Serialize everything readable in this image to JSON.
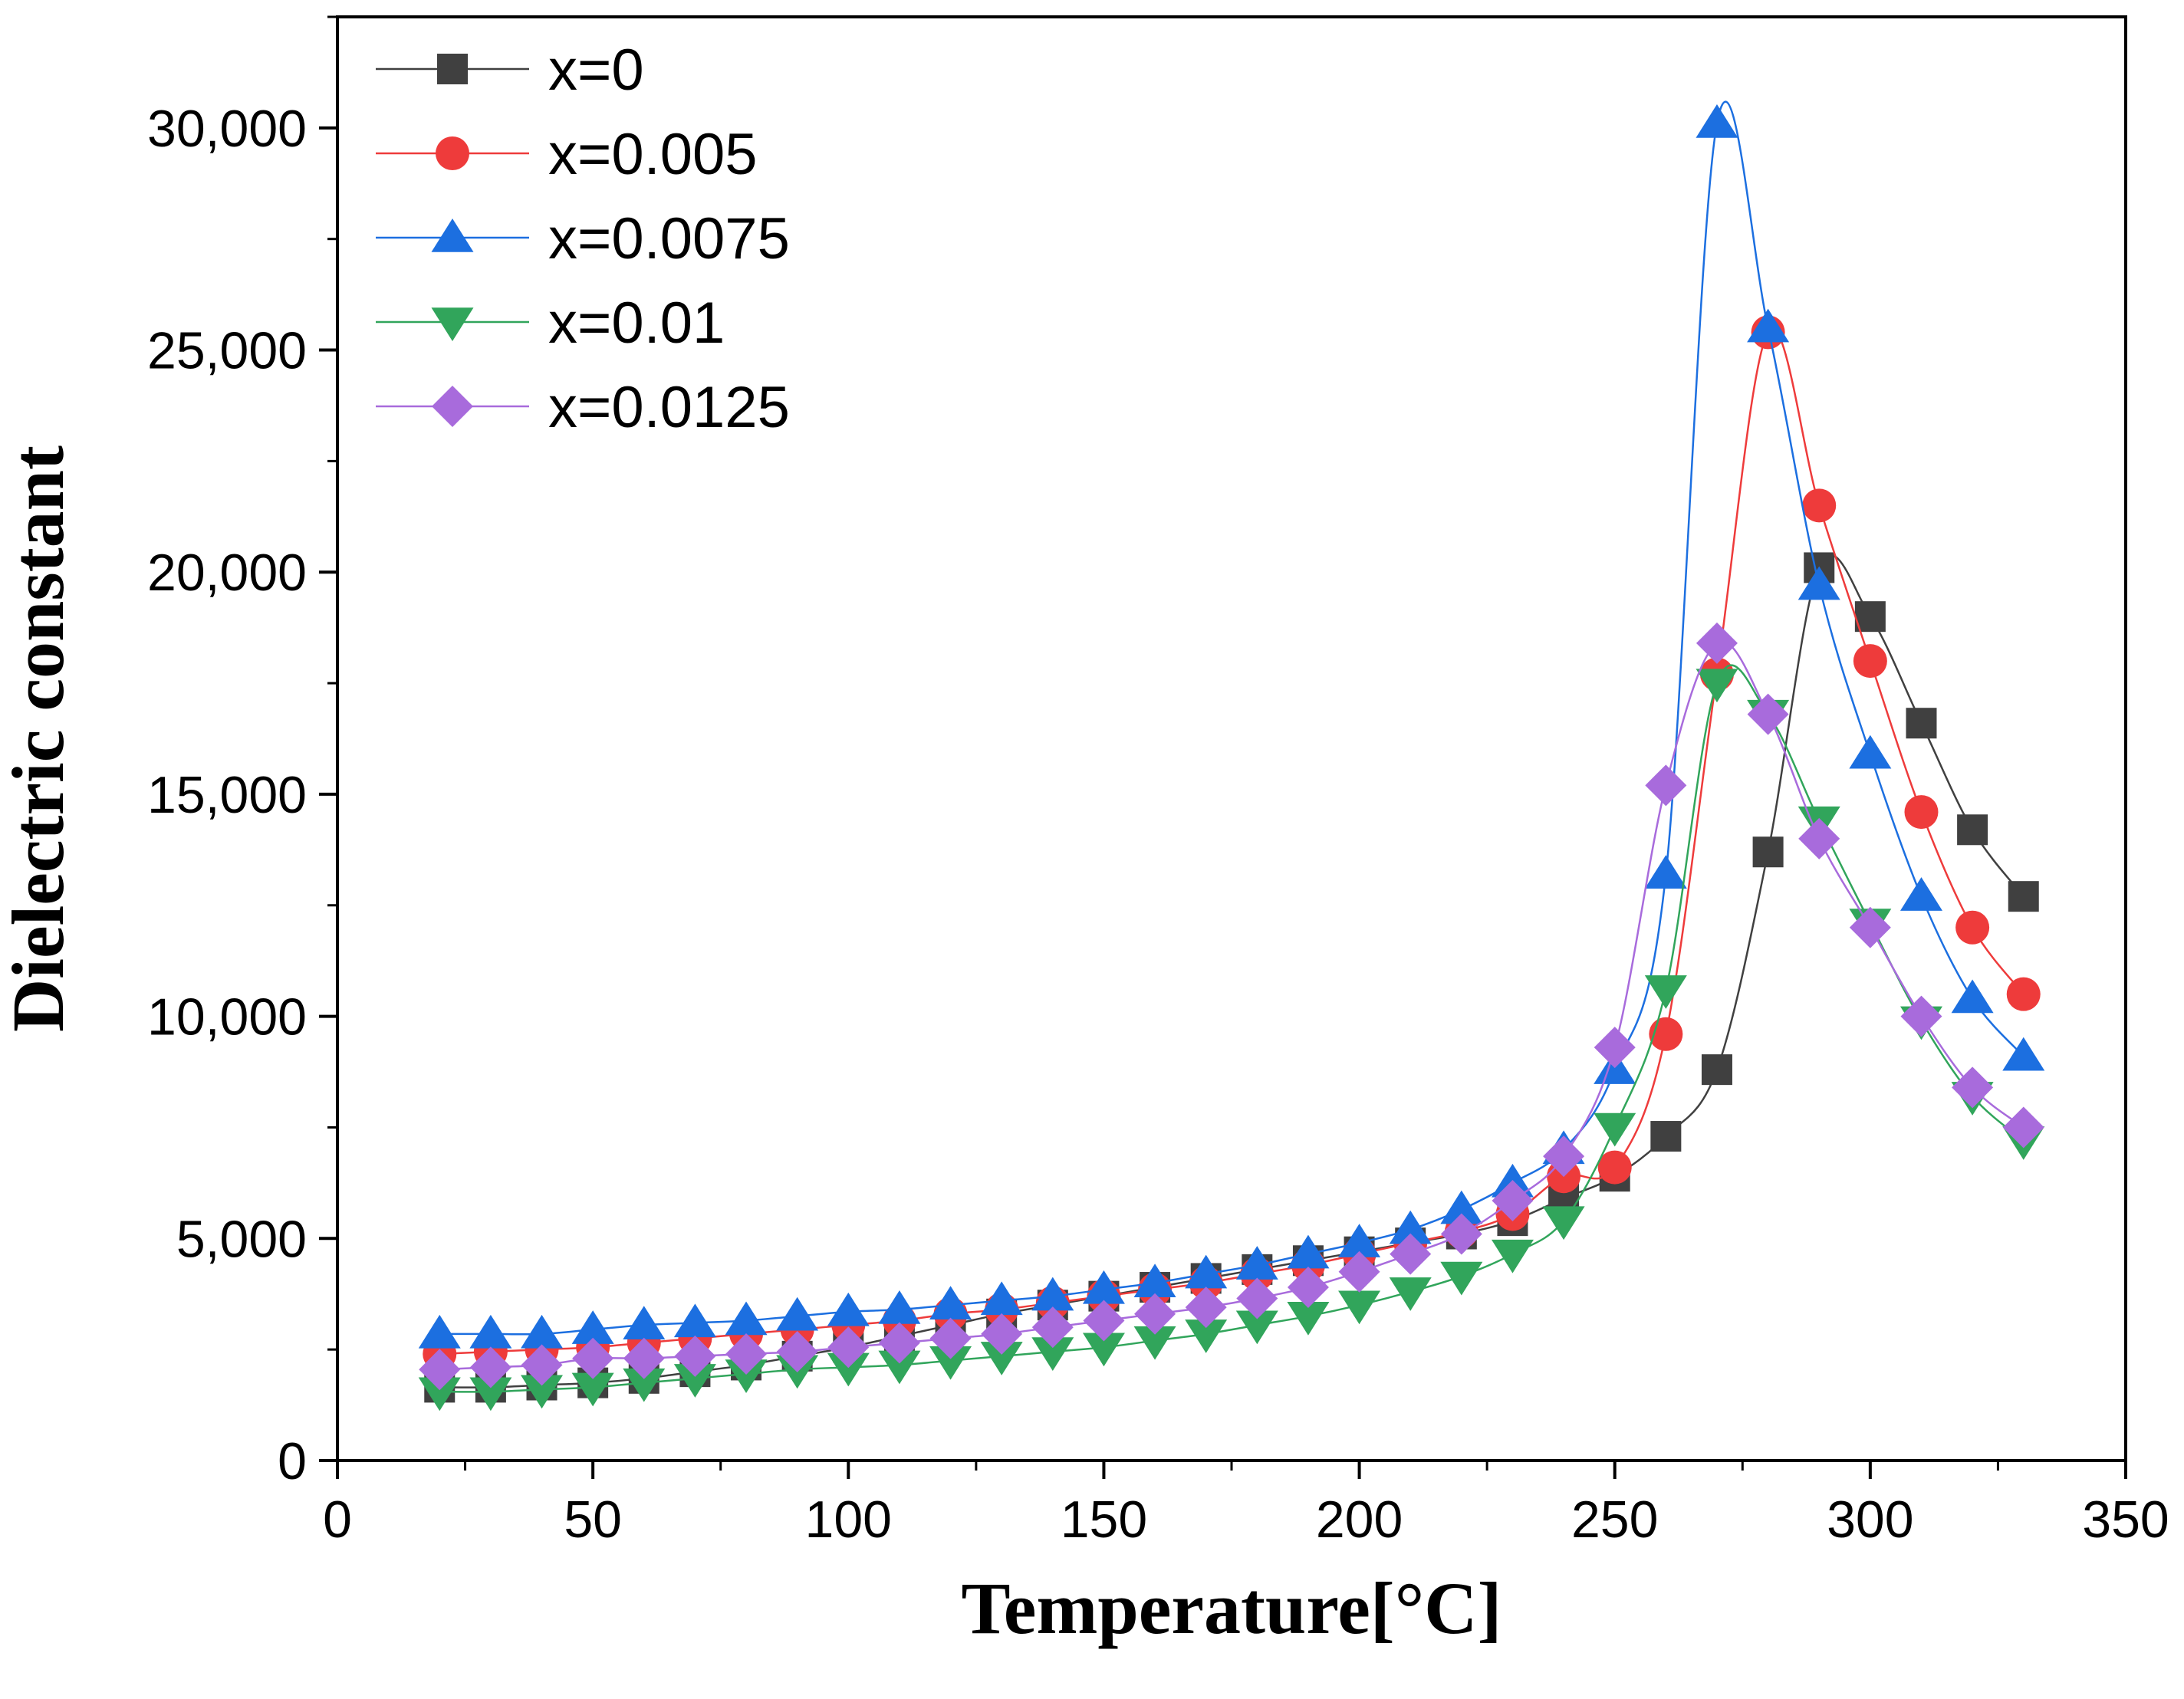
{
  "chart_data": {
    "type": "line",
    "title": "",
    "xlabel": "Temperature[°C]",
    "ylabel": "Dielectric constant",
    "xlim": [
      0,
      350
    ],
    "ylim": [
      0,
      32500
    ],
    "x_ticks": [
      0,
      50,
      100,
      150,
      200,
      250,
      300,
      350
    ],
    "x_tick_labels": [
      "0",
      "50",
      "100",
      "150",
      "200",
      "250",
      "300",
      "350"
    ],
    "y_ticks": [
      0,
      5000,
      10000,
      15000,
      20000,
      25000,
      30000
    ],
    "y_tick_labels": [
      "0",
      "5,000",
      "10,000",
      "15,000",
      "20,000",
      "25,000",
      "30,000"
    ],
    "grid": false,
    "legend_position": "top-left",
    "x": [
      20,
      30,
      40,
      50,
      60,
      70,
      80,
      90,
      100,
      110,
      120,
      130,
      140,
      150,
      160,
      170,
      180,
      190,
      200,
      210,
      220,
      230,
      240,
      250,
      260,
      270,
      280,
      290,
      300,
      310,
      320,
      330
    ],
    "series": [
      {
        "name": "x=0",
        "color": "#404040",
        "marker": "square",
        "values": [
          1650,
          1650,
          1700,
          1750,
          1850,
          2000,
          2150,
          2350,
          2550,
          2800,
          3050,
          3300,
          3500,
          3700,
          3900,
          4100,
          4300,
          4500,
          4700,
          4900,
          5100,
          5400,
          5900,
          6400,
          7300,
          8800,
          13700,
          20100,
          19000,
          16600,
          14200,
          12700
        ]
      },
      {
        "name": "x=0.005",
        "color": "#ee3b3b",
        "marker": "circle",
        "values": [
          2400,
          2450,
          2500,
          2550,
          2650,
          2750,
          2850,
          2950,
          3050,
          3150,
          3300,
          3400,
          3550,
          3700,
          3850,
          4000,
          4200,
          4400,
          4650,
          4900,
          5150,
          5550,
          6400,
          6600,
          9600,
          17700,
          25400,
          21500,
          18000,
          14600,
          12000,
          10500
        ]
      },
      {
        "name": "x=0.0075",
        "color": "#1c6fe0",
        "marker": "triangle-up",
        "values": [
          2850,
          2850,
          2850,
          2950,
          3050,
          3100,
          3150,
          3250,
          3350,
          3400,
          3500,
          3600,
          3700,
          3850,
          4000,
          4200,
          4400,
          4650,
          4900,
          5200,
          5650,
          6250,
          7000,
          8800,
          13200,
          30100,
          25500,
          19700,
          15900,
          12700,
          10400,
          9100
        ]
      },
      {
        "name": "x=0.01",
        "color": "#31a55b",
        "marker": "triangle-down",
        "values": [
          1550,
          1550,
          1600,
          1650,
          1750,
          1850,
          1950,
          2050,
          2100,
          2150,
          2250,
          2350,
          2450,
          2550,
          2700,
          2850,
          3050,
          3250,
          3500,
          3800,
          4150,
          4650,
          5400,
          7500,
          10600,
          17500,
          16800,
          14400,
          12100,
          9900,
          8200,
          7200
        ]
      },
      {
        "name": "x=0.0125",
        "color": "#a86bdc",
        "marker": "diamond",
        "values": [
          2050,
          2100,
          2150,
          2300,
          2300,
          2350,
          2400,
          2450,
          2550,
          2650,
          2750,
          2850,
          3000,
          3150,
          3300,
          3450,
          3650,
          3900,
          4250,
          4650,
          5100,
          5850,
          6850,
          9300,
          15200,
          18400,
          16800,
          14000,
          12000,
          10000,
          8400,
          7500
        ]
      }
    ]
  }
}
